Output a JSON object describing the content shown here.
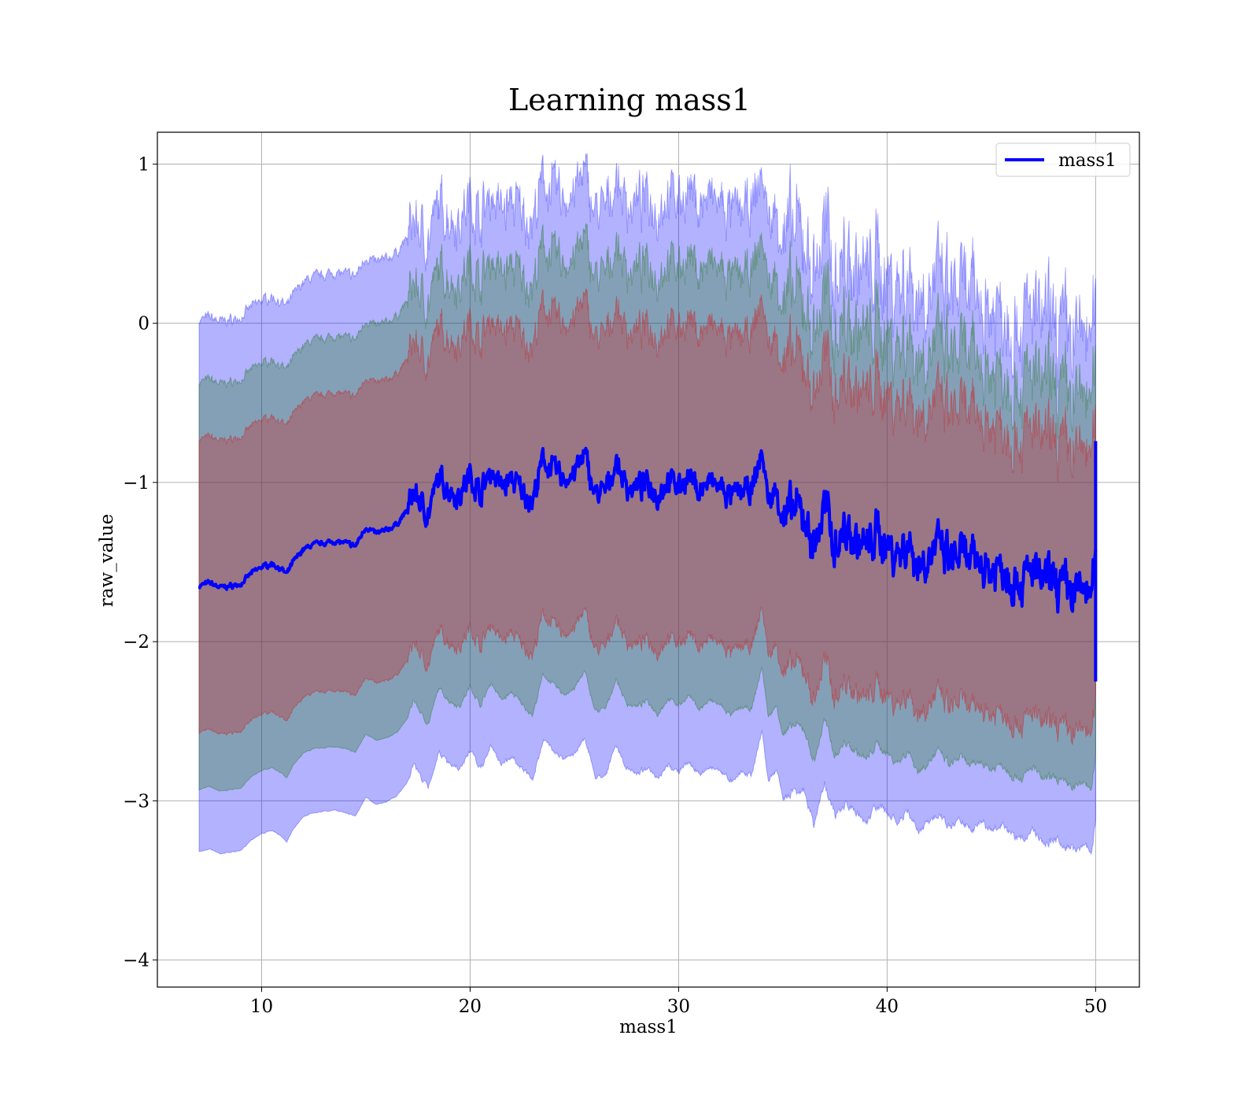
{
  "chart_data": {
    "type": "line",
    "title": "Learning mass1",
    "xlabel": "mass1",
    "ylabel": "raw_value",
    "xlim": [
      5,
      52.1
    ],
    "ylim": [
      -4.17,
      1.2
    ],
    "xticks": [
      10,
      20,
      30,
      40,
      50
    ],
    "yticks": [
      -4,
      -3,
      -2,
      -1,
      0,
      1
    ],
    "grid": true,
    "legend_position": "top-right",
    "legend": [
      "mass1"
    ],
    "colors": {
      "line": "#0000ff",
      "band_outer": "#0000ff",
      "band_middle": "#2e7d32",
      "band_inner": "#c62828"
    },
    "mean_series": {
      "name": "mass1",
      "points": [
        [
          7.0,
          -1.65
        ],
        [
          7.5,
          -1.63
        ],
        [
          8.0,
          -1.66
        ],
        [
          8.5,
          -1.65
        ],
        [
          9.0,
          -1.64
        ],
        [
          9.5,
          -1.57
        ],
        [
          10.0,
          -1.53
        ],
        [
          10.5,
          -1.51
        ],
        [
          11.0,
          -1.55
        ],
        [
          11.2,
          -1.58
        ],
        [
          11.5,
          -1.5
        ],
        [
          12.0,
          -1.42
        ],
        [
          12.5,
          -1.39
        ],
        [
          13.0,
          -1.38
        ],
        [
          13.5,
          -1.37
        ],
        [
          14.0,
          -1.38
        ],
        [
          14.5,
          -1.4
        ],
        [
          15.0,
          -1.28
        ],
        [
          15.5,
          -1.32
        ],
        [
          16.0,
          -1.3
        ],
        [
          16.5,
          -1.26
        ],
        [
          17.0,
          -1.17
        ],
        [
          17.3,
          -1.05
        ],
        [
          17.7,
          -1.15
        ],
        [
          18.0,
          -1.2
        ],
        [
          18.5,
          -0.97
        ],
        [
          19.0,
          -1.05
        ],
        [
          19.5,
          -1.08
        ],
        [
          20.0,
          -0.95
        ],
        [
          20.5,
          -1.07
        ],
        [
          21.0,
          -0.92
        ],
        [
          21.5,
          -1.03
        ],
        [
          22.0,
          -0.98
        ],
        [
          22.5,
          -1.05
        ],
        [
          23.0,
          -1.12
        ],
        [
          23.5,
          -0.86
        ],
        [
          24.0,
          -0.92
        ],
        [
          24.5,
          -0.98
        ],
        [
          25.0,
          -0.94
        ],
        [
          25.5,
          -0.83
        ],
        [
          26.0,
          -1.08
        ],
        [
          26.5,
          -1.06
        ],
        [
          27.0,
          -0.87
        ],
        [
          27.5,
          -1.02
        ],
        [
          28.0,
          -1.04
        ],
        [
          28.5,
          -1.0
        ],
        [
          29.0,
          -1.08
        ],
        [
          29.5,
          -0.98
        ],
        [
          30.0,
          -1.02
        ],
        [
          30.5,
          -0.96
        ],
        [
          31.0,
          -1.05
        ],
        [
          31.5,
          -1.0
        ],
        [
          32.0,
          -1.03
        ],
        [
          32.5,
          -1.1
        ],
        [
          33.0,
          -1.05
        ],
        [
          33.5,
          -1.07
        ],
        [
          34.0,
          -0.8
        ],
        [
          34.3,
          -1.12
        ],
        [
          34.7,
          -1.05
        ],
        [
          35.0,
          -1.24
        ],
        [
          35.5,
          -1.18
        ],
        [
          36.0,
          -1.2
        ],
        [
          36.5,
          -1.42
        ],
        [
          37.0,
          -1.15
        ],
        [
          37.5,
          -1.38
        ],
        [
          38.0,
          -1.3
        ],
        [
          38.5,
          -1.36
        ],
        [
          39.0,
          -1.42
        ],
        [
          39.5,
          -1.32
        ],
        [
          40.0,
          -1.38
        ],
        [
          40.5,
          -1.45
        ],
        [
          41.0,
          -1.38
        ],
        [
          41.5,
          -1.52
        ],
        [
          42.0,
          -1.46
        ],
        [
          42.5,
          -1.4
        ],
        [
          43.0,
          -1.5
        ],
        [
          43.5,
          -1.45
        ],
        [
          44.0,
          -1.52
        ],
        [
          44.5,
          -1.49
        ],
        [
          45.0,
          -1.55
        ],
        [
          45.5,
          -1.52
        ],
        [
          46.0,
          -1.6
        ],
        [
          46.5,
          -1.62
        ],
        [
          47.0,
          -1.55
        ],
        [
          47.5,
          -1.64
        ],
        [
          48.0,
          -1.62
        ],
        [
          48.5,
          -1.66
        ],
        [
          49.0,
          -1.69
        ],
        [
          49.5,
          -1.66
        ],
        [
          49.8,
          -1.72
        ],
        [
          50.0,
          -1.5
        ]
      ],
      "end_segment": [
        [
          50.0,
          -2.25
        ],
        [
          50.0,
          -0.74
        ]
      ]
    },
    "bands": [
      {
        "level": "outer",
        "halfwidth_points": [
          [
            7.0,
            1.67
          ],
          [
            12.0,
            1.68
          ],
          [
            20.0,
            1.73
          ],
          [
            30.0,
            1.8
          ],
          [
            40.0,
            1.7
          ],
          [
            46.0,
            1.63
          ],
          [
            50.0,
            1.61
          ]
        ]
      },
      {
        "level": "middle",
        "halfwidth_points": [
          [
            7.0,
            1.28
          ],
          [
            12.0,
            1.28
          ],
          [
            20.0,
            1.33
          ],
          [
            30.0,
            1.38
          ],
          [
            40.0,
            1.32
          ],
          [
            46.0,
            1.24
          ],
          [
            50.0,
            1.22
          ]
        ]
      },
      {
        "level": "inner",
        "halfwidth_points": [
          [
            7.0,
            0.92
          ],
          [
            12.0,
            0.93
          ],
          [
            20.0,
            0.96
          ],
          [
            30.0,
            0.99
          ],
          [
            40.0,
            0.95
          ],
          [
            46.0,
            0.9
          ],
          [
            50.0,
            0.88
          ]
        ]
      }
    ]
  }
}
